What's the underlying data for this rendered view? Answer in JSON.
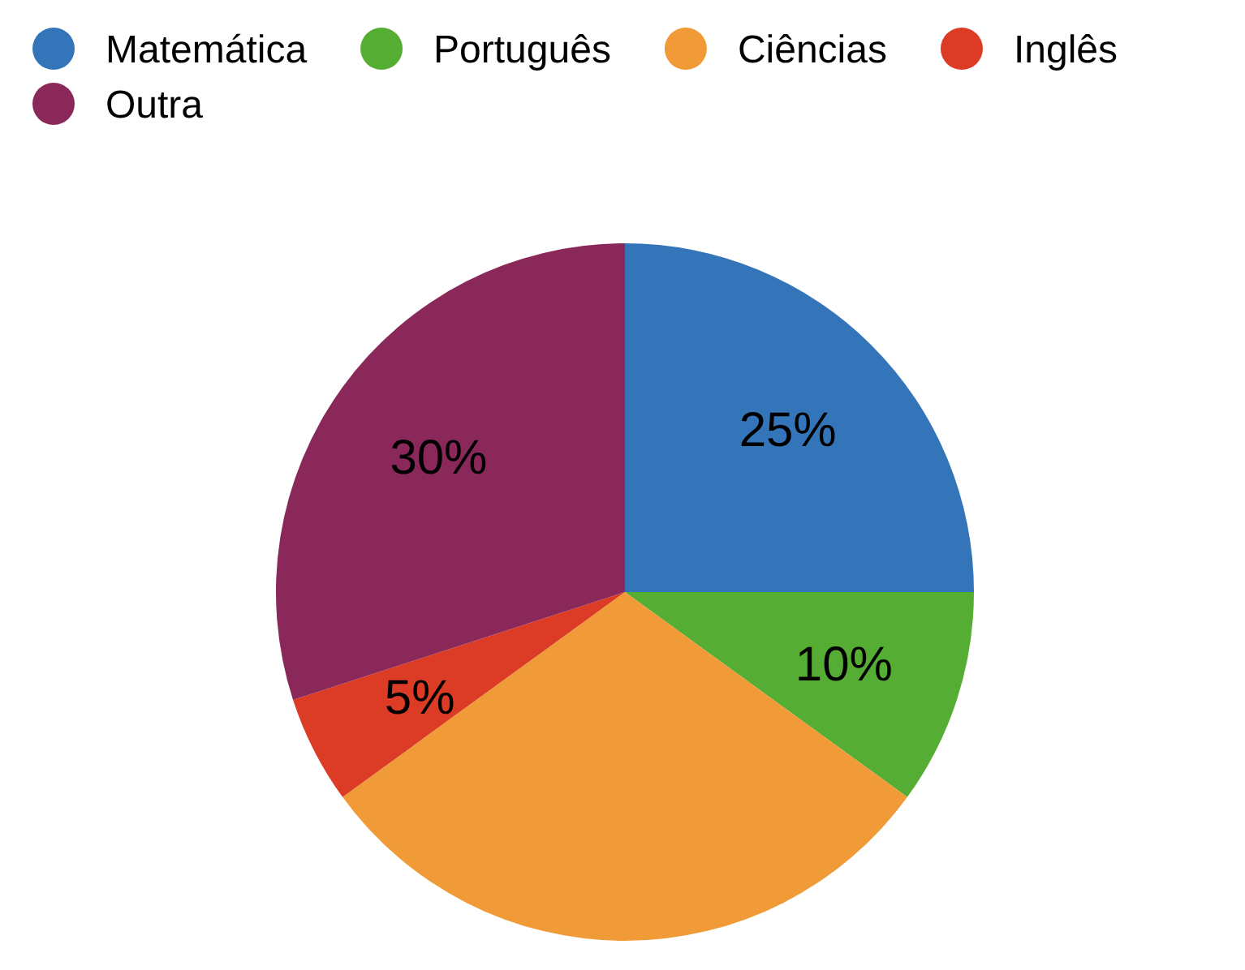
{
  "chart_data": {
    "type": "pie",
    "categories": [
      "Matemática",
      "Português",
      "Ciências",
      "Inglês",
      "Outra"
    ],
    "values": [
      25,
      10,
      30,
      5,
      30
    ],
    "colors": [
      "#3474b8",
      "#56ad34",
      "#f09a38",
      "#dc3b26",
      "#8a285a"
    ],
    "value_labels": [
      "25%",
      "10%",
      null,
      "5%",
      "30%"
    ],
    "legend": "top left"
  }
}
